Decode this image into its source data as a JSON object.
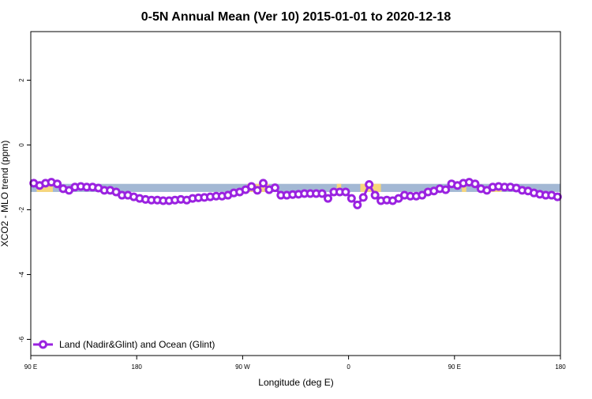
{
  "chart_data": {
    "type": "line",
    "title": "0-5N Annual Mean (Ver 10)   2015-01-01 to 2020-12-18",
    "xlabel": "Longitude (deg E)",
    "ylabel": "XCO2 - MLO trend (ppm)",
    "xlim": [
      90,
      450
    ],
    "ylim": [
      -6.5,
      3.5
    ],
    "x_ticks": [
      {
        "value": 90,
        "label": "90 E"
      },
      {
        "value": 162,
        "label": "180"
      },
      {
        "value": 234,
        "label": "90 W"
      },
      {
        "value": 306,
        "label": "0"
      },
      {
        "value": 378,
        "label": "90 E"
      },
      {
        "value": 450,
        "label": "180"
      }
    ],
    "y_ticks": [
      {
        "value": 2,
        "label": "2"
      },
      {
        "value": 0,
        "label": "0"
      },
      {
        "value": -2,
        "label": "-2"
      },
      {
        "value": -4,
        "label": "-4"
      },
      {
        "value": -6,
        "label": "-6"
      }
    ],
    "band": {
      "lower": -1.45,
      "upper": -1.2,
      "color": "#a3b8d4"
    },
    "land_segments": [
      [
        94,
        105
      ],
      [
        237,
        252
      ],
      [
        298,
        301
      ],
      [
        314,
        328
      ],
      [
        383,
        386
      ],
      [
        402,
        410
      ]
    ],
    "land_color": "#f7d67c",
    "series": [
      {
        "name": "Land (Nadir&Glint) and Ocean (Glint)",
        "color": "#9a22e0",
        "x": [
          92,
          96,
          100,
          104,
          108,
          112,
          116,
          120,
          124,
          128,
          132,
          136,
          140,
          144,
          148,
          152,
          156,
          160,
          164,
          168,
          172,
          176,
          180,
          184,
          188,
          192,
          196,
          200,
          204,
          208,
          212,
          216,
          220,
          224,
          228,
          232,
          236,
          240,
          244,
          248,
          252,
          256,
          260,
          264,
          268,
          272,
          276,
          280,
          284,
          288,
          292,
          296,
          300,
          304,
          308,
          312,
          316,
          320,
          324,
          328,
          332,
          336,
          340,
          344,
          348,
          352,
          356,
          360,
          364,
          368,
          372,
          376,
          380,
          384,
          388,
          392,
          396,
          400,
          404,
          408,
          412,
          416,
          420,
          424,
          428,
          432,
          436,
          440,
          444,
          448
        ],
        "y": [
          -1.18,
          -1.25,
          -1.18,
          -1.15,
          -1.2,
          -1.35,
          -1.4,
          -1.3,
          -1.28,
          -1.3,
          -1.3,
          -1.33,
          -1.4,
          -1.4,
          -1.45,
          -1.55,
          -1.55,
          -1.6,
          -1.65,
          -1.68,
          -1.7,
          -1.7,
          -1.72,
          -1.72,
          -1.7,
          -1.68,
          -1.7,
          -1.65,
          -1.63,
          -1.62,
          -1.6,
          -1.58,
          -1.58,
          -1.55,
          -1.48,
          -1.45,
          -1.38,
          -1.28,
          -1.4,
          -1.18,
          -1.38,
          -1.32,
          -1.55,
          -1.55,
          -1.53,
          -1.52,
          -1.5,
          -1.5,
          -1.5,
          -1.5,
          -1.65,
          -1.45,
          -1.45,
          -1.45,
          -1.65,
          -1.85,
          -1.62,
          -1.22,
          -1.55,
          -1.72,
          -1.7,
          -1.72,
          -1.65,
          -1.55,
          -1.58,
          -1.58,
          -1.55,
          -1.45,
          -1.42,
          -1.35,
          -1.38,
          -1.2,
          -1.25,
          -1.18,
          -1.15,
          -1.2,
          -1.35,
          -1.4,
          -1.3,
          -1.28,
          -1.3,
          -1.3,
          -1.33,
          -1.4,
          -1.42,
          -1.48,
          -1.52,
          -1.55,
          -1.55,
          -1.6
        ]
      }
    ],
    "legend": {
      "position": "bottom-left"
    }
  }
}
